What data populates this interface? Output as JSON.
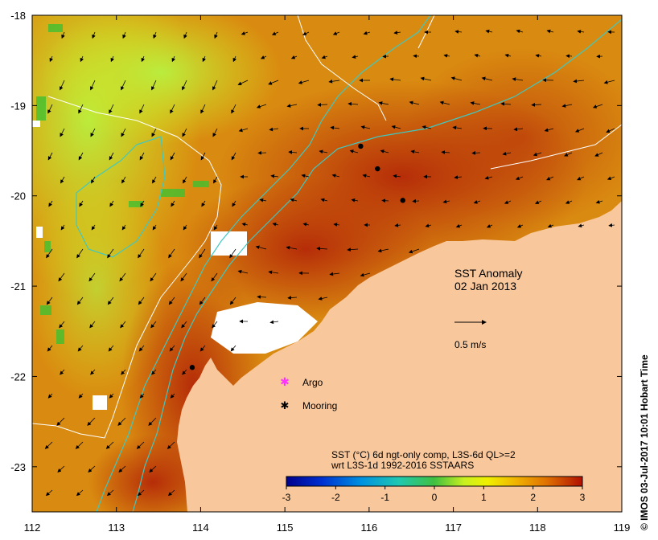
{
  "map": {
    "x_ticks": [
      "112",
      "113",
      "114",
      "115",
      "116",
      "117",
      "118",
      "119"
    ],
    "y_ticks": [
      "-18",
      "-19",
      "-20",
      "-21",
      "-22",
      "-23"
    ],
    "lon_range": [
      112,
      119
    ],
    "lat_range": [
      -23.5,
      -18
    ]
  },
  "annotation": {
    "title": "SST Anomaly",
    "date": "02 Jan 2013",
    "arrow_scale": "0.5 m/s"
  },
  "legend": {
    "argo": "Argo",
    "mooring": "Mooring"
  },
  "colorbar": {
    "caption_line1": "SST (°C) 6d ngt-only comp, L3S-6d QL>=2",
    "caption_line2": "wrt L3S-1d 1992-2016 SSTAARS",
    "ticks": [
      "-3",
      "-2",
      "-1",
      "0",
      "1",
      "2",
      "3"
    ],
    "range": [
      -3,
      3
    ]
  },
  "credit": "© IMOS 03-Jul-2017 10:01 Hobart Time",
  "moorings": [
    {
      "lon": 115.9,
      "lat": -19.45
    },
    {
      "lon": 116.1,
      "lat": -19.7
    },
    {
      "lon": 116.4,
      "lat": -20.05
    },
    {
      "lon": 113.9,
      "lat": -21.9
    }
  ],
  "colors": {
    "land": "#f8c79b",
    "no_data": "#ffffff",
    "argo": "#ff33ff",
    "isobath_200m": "#ffffff",
    "isobath_50m": "#40c8c0"
  }
}
